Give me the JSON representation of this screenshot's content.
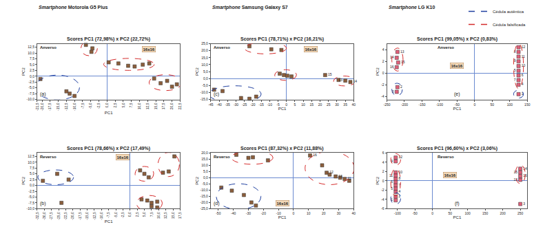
{
  "chart_data": [
    {
      "type": "scatter",
      "header": "Smartphone Motorola G5 Plus",
      "title": "Scores PC1 (72,98%) x PC2 (22,72%)",
      "subtitle": "Anverso",
      "panel": "(a)",
      "note": "16x16",
      "x_label": "PC1",
      "y_label": "PC2",
      "color": "#8b5e3c",
      "marker": "square",
      "grid": false,
      "xlim": [
        -21.5,
        22.5
      ],
      "xticks": [
        {
          "value": -21.5,
          "label": "-21,5"
        },
        {
          "value": -20,
          "label": "-20,0"
        },
        {
          "value": -17.5,
          "label": "-17,5"
        },
        {
          "value": -15,
          "label": "-15,0"
        },
        {
          "value": -12.5,
          "label": "-12,5"
        },
        {
          "value": -10,
          "label": "-10,0"
        },
        {
          "value": -7.5,
          "label": "-7,5"
        },
        {
          "value": -5,
          "label": "-5,0"
        },
        {
          "value": -2.5,
          "label": "-2,5"
        },
        {
          "value": 0,
          "label": "0,0"
        },
        {
          "value": 2.5,
          "label": "2,5"
        },
        {
          "value": 5,
          "label": "5,0"
        },
        {
          "value": 7.5,
          "label": "7,5"
        },
        {
          "value": 10,
          "label": "10,0"
        },
        {
          "value": 12.5,
          "label": "12,5"
        },
        {
          "value": 15,
          "label": "15,0"
        },
        {
          "value": 17.5,
          "label": "17,5"
        },
        {
          "value": 20,
          "label": "20,0"
        },
        {
          "value": 22.5,
          "label": "22,5"
        }
      ],
      "ylim": [
        -10,
        14
      ],
      "yticks": [
        {
          "value": -10,
          "label": "-10,0"
        },
        {
          "value": -7.5,
          "label": "-7,5"
        },
        {
          "value": -5,
          "label": "-5,0"
        },
        {
          "value": -2.5,
          "label": "-2,5"
        },
        {
          "value": 0,
          "label": "0,0"
        },
        {
          "value": 2.5,
          "label": "2,5"
        },
        {
          "value": 5,
          "label": "5,0"
        },
        {
          "value": 7.5,
          "label": "7,5"
        },
        {
          "value": 10,
          "label": "10,0"
        },
        {
          "value": 12.5,
          "label": "12,5"
        }
      ],
      "series": [
        {
          "name": "Cédula autêntica",
          "color": "#1f3f9f",
          "line_style": "dashed",
          "x": [
            -20.5,
            -12.5,
            -11.5,
            -10
          ],
          "y": [
            -1.2,
            -6.5,
            -7.5,
            -8.5
          ],
          "labels": [
            null,
            null,
            null,
            null
          ]
        },
        {
          "name": "Cédula falsificada",
          "color": "#d42a2a",
          "line_style": "dashed",
          "x": [
            -6.5,
            -4.5,
            -4.8
          ],
          "y": [
            13.5,
            12,
            10.5
          ],
          "labels": [
            null,
            null,
            null
          ]
        },
        {
          "name": "Cédula falsificada",
          "color": "#d42a2a",
          "line_style": "dashed",
          "x": [
            0.5,
            3.5,
            6.5,
            8.5,
            11,
            13
          ],
          "y": [
            6,
            5.5,
            4.5,
            4.2,
            5,
            5.5
          ],
          "labels": [
            null,
            null,
            null,
            null,
            null,
            null
          ]
        },
        {
          "name": "Cédula falsificada",
          "color": "#d42a2a",
          "line_style": "dashed",
          "x": [
            14.5,
            16.5,
            18.5,
            20,
            21.5
          ],
          "y": [
            -1,
            -3,
            -2,
            -4.5,
            -3.5
          ],
          "labels": [
            null,
            null,
            null,
            null,
            null
          ]
        }
      ]
    },
    {
      "type": "scatter",
      "title": "Scores PC1 (78,66%) x PC2 (17,49%)",
      "subtitle": "Reverso",
      "panel": "(b)",
      "note": "16x16",
      "x_label": "PC1",
      "y_label": "PC2",
      "color": "#8b5e3c",
      "marker": "square",
      "grid": false,
      "xlim": [
        -32.5,
        17.5
      ],
      "xticks": [
        {
          "value": -32.5,
          "label": "-32,5"
        },
        {
          "value": -30,
          "label": "-30,0"
        },
        {
          "value": -27.5,
          "label": "-27,5"
        },
        {
          "value": -25,
          "label": "-25,0"
        },
        {
          "value": -22.5,
          "label": "-22,5"
        },
        {
          "value": -20,
          "label": "-20,0"
        },
        {
          "value": -17.5,
          "label": "-17,5"
        },
        {
          "value": -15,
          "label": "-15,0"
        },
        {
          "value": -12.5,
          "label": "-12,5"
        },
        {
          "value": -10,
          "label": "-10,0"
        },
        {
          "value": -7.5,
          "label": "-7,5"
        },
        {
          "value": -5,
          "label": "-5,0"
        },
        {
          "value": -2.5,
          "label": "-2,5"
        },
        {
          "value": 0,
          "label": "0,0"
        },
        {
          "value": 2.5,
          "label": "2,5"
        },
        {
          "value": 5,
          "label": "5,0"
        },
        {
          "value": 7.5,
          "label": "7,5"
        },
        {
          "value": 10,
          "label": "10,0"
        },
        {
          "value": 12.5,
          "label": "12,5"
        },
        {
          "value": 15,
          "label": "15,0"
        },
        {
          "value": 17.5,
          "label": "17,5"
        }
      ],
      "ylim": [
        -10,
        14
      ],
      "yticks": [
        {
          "value": -10,
          "label": "-10,0"
        },
        {
          "value": -7.5,
          "label": "-7,5"
        },
        {
          "value": -5,
          "label": "-5,0"
        },
        {
          "value": -2.5,
          "label": "-2,5"
        },
        {
          "value": 0,
          "label": "0,0"
        },
        {
          "value": 2.5,
          "label": "2,5"
        },
        {
          "value": 5,
          "label": "5,0"
        },
        {
          "value": 7.5,
          "label": "7,5"
        },
        {
          "value": 10,
          "label": "10,0"
        },
        {
          "value": 12.5,
          "label": "12,5"
        }
      ],
      "series": [
        {
          "name": "Cédula autêntica",
          "color": "#1f3f9f",
          "line_style": "dashed",
          "x": [
            -30.5,
            -25.5,
            -21.5
          ],
          "y": [
            2,
            5,
            2.5
          ],
          "labels": [
            null,
            null,
            null
          ]
        },
        {
          "name": "Cédula autêntica",
          "color": "#1f3f9f",
          "line_style": "none",
          "x": [
            -24
          ],
          "y": [
            -7.5
          ],
          "labels": [
            null
          ]
        },
        {
          "name": "Cédula falsificada",
          "color": "#d42a2a",
          "line_style": "dashed",
          "x": [
            3.5,
            5,
            6.5
          ],
          "y": [
            6.5,
            5,
            3.5
          ],
          "labels": [
            null,
            null,
            null
          ]
        },
        {
          "name": "Cédula falsificada",
          "color": "#d42a2a",
          "line_style": "dashed",
          "x": [
            11.5,
            13.5,
            15.5
          ],
          "y": [
            5.5,
            6,
            12.5
          ],
          "labels": [
            null,
            null,
            null
          ]
        },
        {
          "name": "Cédula falsificada",
          "color": "#d42a2a",
          "line_style": "dashed",
          "x": [
            4,
            6,
            7.5,
            9.5,
            7.5,
            9.5
          ],
          "y": [
            -6,
            -6.5,
            -7.5,
            -7,
            -9,
            -9.5
          ],
          "labels": [
            null,
            null,
            null,
            null,
            null,
            null
          ]
        }
      ]
    },
    {
      "type": "scatter",
      "header": "Smartphone Samsung Galaxy S7",
      "title": "Scores PC1 (78,71%) x PC2 (16,21%)",
      "subtitle": "Anverso",
      "panel": "(c)",
      "note": "16x16",
      "x_label": "PC1",
      "y_label": "PC2",
      "color": "#8b5e3c",
      "marker": "square",
      "grid": false,
      "xlim": [
        -45,
        40
      ],
      "xticks": [
        -45,
        -40,
        -35,
        -30,
        -25,
        -20,
        -15,
        -10,
        -5,
        0,
        5,
        10,
        15,
        20,
        25,
        30,
        35,
        40
      ],
      "ylim": [
        -15,
        25
      ],
      "yticks": [
        {
          "value": -15,
          "label": "-15,0"
        },
        {
          "value": -10,
          "label": "-10,0"
        },
        {
          "value": -5,
          "label": "-5,0"
        },
        {
          "value": 0,
          "label": "0,0"
        },
        {
          "value": 5,
          "label": "5,0"
        },
        {
          "value": 10,
          "label": "10,0"
        },
        {
          "value": 15,
          "label": "15,0"
        },
        {
          "value": 20,
          "label": "20,0"
        },
        {
          "value": 25,
          "label": "25,0"
        }
      ],
      "series": [
        {
          "name": "Cédula autêntica",
          "color": "#1f3f9f",
          "line_style": "dashed",
          "x": [
            -43,
            -38,
            -27,
            -22,
            -18
          ],
          "y": [
            -8,
            -9,
            -14,
            -14.5,
            -13
          ],
          "labels": [
            null,
            null,
            null,
            null,
            null
          ]
        },
        {
          "name": "Cédula falsificada",
          "color": "#d42a2a",
          "line_style": "dashed",
          "x": [
            -22,
            -9,
            -3
          ],
          "y": [
            23.2,
            21,
            20.5
          ],
          "labels": [
            null,
            null,
            null
          ]
        },
        {
          "name": "Cédula falsificada",
          "color": "#d42a2a",
          "line_style": "dashed",
          "x": [
            -4,
            -1.5,
            0.5,
            3
          ],
          "y": [
            3.5,
            2.5,
            2,
            1.5
          ],
          "labels": [
            null,
            null,
            null,
            null
          ]
        },
        {
          "name": "Cédula falsificada",
          "color": "#d42a2a",
          "line_style": "none",
          "x": [
            23
          ],
          "y": [
            2.5
          ],
          "labels": [
            "15"
          ]
        },
        {
          "name": "Cédula falsificada",
          "color": "#d42a2a",
          "line_style": "dashed",
          "x": [
            31,
            35,
            38
          ],
          "y": [
            -1,
            -1.5,
            -2.5
          ],
          "labels": [
            null,
            "13",
            "14"
          ]
        }
      ]
    },
    {
      "type": "scatter",
      "title": "Scores PC1 (87,32%) x PC2 (11,88%)",
      "subtitle": "Reverso",
      "panel": "(d)",
      "note": "16x16",
      "x_label": "PC1",
      "y_label": "PC2",
      "color": "#8b5e3c",
      "marker": "square",
      "grid": false,
      "xlim": [
        -55,
        40
      ],
      "xticks": [
        -50,
        -40,
        -30,
        -20,
        -10,
        0,
        10,
        20,
        30,
        40
      ],
      "ylim": [
        -25,
        20
      ],
      "yticks": [
        {
          "value": -25,
          "label": "-25,0"
        },
        {
          "value": -20,
          "label": "-20,0"
        },
        {
          "value": -15,
          "label": "-15,0"
        },
        {
          "value": -10,
          "label": "-10,0"
        },
        {
          "value": -5,
          "label": "-5,0"
        },
        {
          "value": 0,
          "label": "0,0"
        },
        {
          "value": 5,
          "label": "5,0"
        },
        {
          "value": 10,
          "label": "10,0"
        },
        {
          "value": 15,
          "label": "15,0"
        },
        {
          "value": 20,
          "label": "20,0"
        }
      ],
      "series": [
        {
          "name": "Cédula autêntica",
          "color": "#1f3f9f",
          "line_style": "dashed",
          "x": [
            -48,
            -41,
            -33,
            -28,
            -25
          ],
          "y": [
            -8,
            -10.5,
            -14,
            -20,
            -22.5
          ],
          "labels": [
            null,
            null,
            null,
            null,
            null
          ]
        },
        {
          "name": "Cédula falsificada",
          "color": "#d42a2a",
          "line_style": "dashed",
          "x": [
            -38,
            -30,
            -27,
            -17
          ],
          "y": [
            18.5,
            16,
            16.5,
            14
          ],
          "labels": [
            null,
            null,
            null,
            null
          ]
        },
        {
          "name": "Cédula falsificada",
          "color": "#d42a2a",
          "line_style": "dashed",
          "x": [
            11,
            19,
            22,
            24,
            28,
            31,
            34,
            37
          ],
          "y": [
            18,
            10,
            4,
            2.5,
            1,
            0,
            -1,
            -2.5
          ],
          "labels": [
            "16",
            null,
            "12",
            null,
            "13",
            null,
            "11",
            null
          ]
        }
      ]
    },
    {
      "type": "scatter",
      "header": "Smartphone LG K10",
      "title": "Scores PC1 (99,05%) x PC2 (0,83%)",
      "subtitle": "Anverso",
      "panel": "(e)",
      "note": "16x16",
      "x_label": "PC1",
      "y_label": "PC2",
      "color": "#e0607a",
      "marker": "square",
      "grid": false,
      "xlim": [
        -250,
        150
      ],
      "xticks": [
        -250,
        -200,
        -150,
        -100,
        -50,
        0,
        50,
        100,
        150
      ],
      "ylim": [
        -4.5,
        5
      ],
      "yticks": [
        -4,
        -2,
        0,
        2,
        4
      ],
      "series": [
        {
          "name": "Cédula autêntica",
          "color": "#1f3f9f",
          "line_style": "dashed",
          "x": [
            -220,
            -222
          ],
          "y": [
            -2.4,
            -3.2
          ],
          "labels": [
            "2",
            "3"
          ]
        },
        {
          "name": "Cédula falsificada",
          "color": "#d42a2a",
          "line_style": "dashed",
          "x": [
            -220,
            -222,
            -218,
            -222
          ],
          "y": [
            3.6,
            2.6,
            1.8,
            1
          ],
          "labels": [
            "13",
            "14",
            "15",
            "16"
          ]
        },
        {
          "name": "Cédula falsificada",
          "color": "#d42a2a",
          "line_style": "dashed",
          "x": [
            125,
            125,
            125,
            125,
            125,
            125,
            125,
            125,
            125
          ],
          "y": [
            4.4,
            3.6,
            2.8,
            2,
            1.2,
            0.4,
            -0.4,
            -1.2,
            -2
          ],
          "labels": [
            "12",
            "8",
            "11",
            "9",
            "10",
            "5",
            "6",
            "7",
            "4"
          ]
        },
        {
          "name": "Cédula autêntica",
          "color": "#1f3f9f",
          "line_style": "dashed",
          "x": [
            125
          ],
          "y": [
            -3.6
          ],
          "labels": [
            "1"
          ]
        }
      ]
    },
    {
      "type": "scatter",
      "title": "Scores PC1 (96,60%) x PC2 (3,06%)",
      "subtitle": "Reverso",
      "panel": "(f)",
      "note": "16x16",
      "x_label": "PC1",
      "y_label": "PC2",
      "color": "#e0607a",
      "marker": "square",
      "grid": false,
      "xlim": [
        -130,
        270
      ],
      "xticks": [
        -100,
        -50,
        0,
        50,
        100,
        150,
        200,
        250
      ],
      "ylim": [
        -6,
        6
      ],
      "yticks": [
        -6,
        -4,
        -2,
        0,
        2,
        4,
        6
      ],
      "series": [
        {
          "name": "Cédula falsificada",
          "color": "#d42a2a",
          "line_style": "dashed",
          "x": [
            -105,
            -105
          ],
          "y": [
            5,
            4.2
          ],
          "labels": [
            "12",
            "9"
          ]
        },
        {
          "name": "Cédula falsificada",
          "color": "#d42a2a",
          "line_style": "dashed",
          "x": [
            -105,
            -105,
            -105,
            -105,
            -105,
            -105,
            -105
          ],
          "y": [
            1.8,
            1.1,
            0.4,
            -0.3,
            -1,
            -1.7,
            -2.4
          ],
          "labels": [
            "10",
            "11",
            "8",
            "6",
            "7",
            "5",
            "4"
          ]
        },
        {
          "name": "Cédula autêntica",
          "color": "#1f3f9f",
          "line_style": "dashed",
          "x": [
            -105,
            -105
          ],
          "y": [
            -3.4,
            -4.2
          ],
          "labels": [
            "2",
            "1"
          ]
        },
        {
          "name": "Cédula falsificada",
          "color": "#d42a2a",
          "line_style": "dashed",
          "x": [
            250,
            250,
            250,
            250
          ],
          "y": [
            2.6,
            1.8,
            1,
            0.2
          ],
          "labels": [
            "14",
            "15",
            "16",
            "13"
          ]
        },
        {
          "name": "Cédula autêntica",
          "color": "#1f3f9f",
          "line_style": "none",
          "x": [
            250
          ],
          "y": [
            -5
          ],
          "labels": [
            "3"
          ]
        }
      ]
    }
  ],
  "legend": "top right"
}
